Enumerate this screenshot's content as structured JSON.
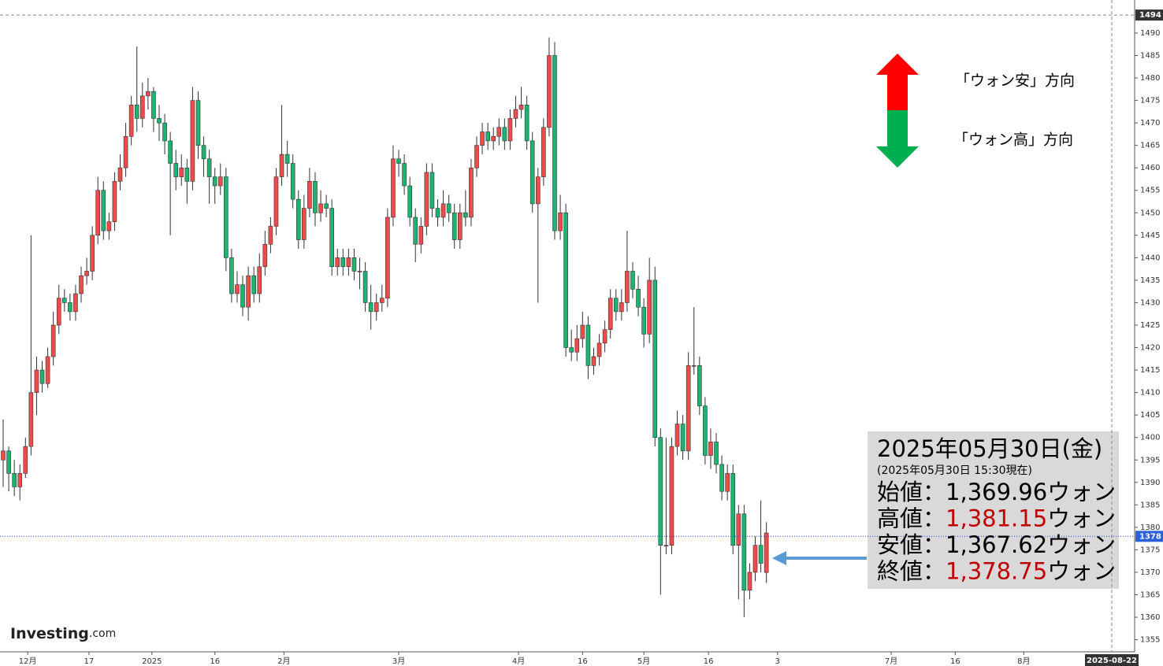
{
  "chart_data": {
    "type": "candlestick",
    "candles": [
      [
        1395,
        1404,
        1389,
        1397
      ],
      [
        1397,
        1398,
        1388,
        1392
      ],
      [
        1392,
        1395,
        1387,
        1389
      ],
      [
        1389,
        1394,
        1386,
        1392
      ],
      [
        1392,
        1400,
        1391,
        1398
      ],
      [
        1398,
        1445,
        1396,
        1410
      ],
      [
        1410,
        1418,
        1405,
        1415
      ],
      [
        1415,
        1417,
        1410,
        1412
      ],
      [
        1412,
        1420,
        1411,
        1418
      ],
      [
        1418,
        1428,
        1416,
        1425
      ],
      [
        1425,
        1434,
        1423,
        1431
      ],
      [
        1431,
        1433,
        1428,
        1430
      ],
      [
        1430,
        1432,
        1426,
        1428
      ],
      [
        1428,
        1434,
        1426,
        1432
      ],
      [
        1432,
        1438,
        1430,
        1436
      ],
      [
        1436,
        1440,
        1434,
        1437
      ],
      [
        1437,
        1447,
        1435,
        1445
      ],
      [
        1445,
        1458,
        1443,
        1455
      ],
      [
        1455,
        1457,
        1444,
        1446
      ],
      [
        1446,
        1450,
        1444,
        1448
      ],
      [
        1448,
        1459,
        1446,
        1457
      ],
      [
        1457,
        1463,
        1455,
        1460
      ],
      [
        1460,
        1470,
        1458,
        1467
      ],
      [
        1467,
        1476,
        1465,
        1474
      ],
      [
        1474,
        1487,
        1468,
        1471
      ],
      [
        1471,
        1479,
        1469,
        1476
      ],
      [
        1476,
        1480,
        1473,
        1477
      ],
      [
        1477,
        1478,
        1468,
        1471
      ],
      [
        1471,
        1474,
        1466,
        1470
      ],
      [
        1470,
        1472,
        1463,
        1466
      ],
      [
        1466,
        1468,
        1445,
        1461
      ],
      [
        1461,
        1464,
        1455,
        1458
      ],
      [
        1458,
        1463,
        1456,
        1460
      ],
      [
        1460,
        1462,
        1452,
        1457
      ],
      [
        1457,
        1478,
        1455,
        1475
      ],
      [
        1475,
        1477,
        1462,
        1465
      ],
      [
        1465,
        1467,
        1458,
        1462
      ],
      [
        1462,
        1464,
        1452,
        1458
      ],
      [
        1458,
        1460,
        1452,
        1456
      ],
      [
        1456,
        1461,
        1454,
        1458
      ],
      [
        1458,
        1460,
        1437,
        1440
      ],
      [
        1440,
        1442,
        1430,
        1432
      ],
      [
        1432,
        1437,
        1430,
        1434
      ],
      [
        1434,
        1436,
        1427,
        1429
      ],
      [
        1429,
        1438,
        1426,
        1436
      ],
      [
        1436,
        1438,
        1430,
        1432
      ],
      [
        1432,
        1441,
        1430,
        1438
      ],
      [
        1438,
        1446,
        1436,
        1443
      ],
      [
        1443,
        1449,
        1441,
        1447
      ],
      [
        1447,
        1460,
        1445,
        1458
      ],
      [
        1458,
        1474,
        1456,
        1463
      ],
      [
        1463,
        1466,
        1458,
        1461
      ],
      [
        1461,
        1463,
        1451,
        1453
      ],
      [
        1453,
        1455,
        1442,
        1444
      ],
      [
        1444,
        1454,
        1442,
        1451
      ],
      [
        1451,
        1460,
        1449,
        1457
      ],
      [
        1457,
        1459,
        1447,
        1450
      ],
      [
        1450,
        1455,
        1448,
        1452
      ],
      [
        1452,
        1454,
        1449,
        1451
      ],
      [
        1451,
        1453,
        1436,
        1438
      ],
      [
        1438,
        1442,
        1436,
        1440
      ],
      [
        1440,
        1442,
        1436,
        1438
      ],
      [
        1438,
        1442,
        1436,
        1440
      ],
      [
        1440,
        1442,
        1435,
        1437
      ],
      [
        1437,
        1440,
        1433,
        1437
      ],
      [
        1437,
        1439,
        1428,
        1430
      ],
      [
        1430,
        1434,
        1424,
        1428
      ],
      [
        1428,
        1432,
        1426,
        1430
      ],
      [
        1430,
        1434,
        1428,
        1431
      ],
      [
        1431,
        1451,
        1429,
        1449
      ],
      [
        1449,
        1465,
        1447,
        1462
      ],
      [
        1462,
        1464,
        1458,
        1461
      ],
      [
        1461,
        1463,
        1454,
        1456
      ],
      [
        1456,
        1458,
        1447,
        1449
      ],
      [
        1449,
        1451,
        1439,
        1443
      ],
      [
        1443,
        1449,
        1441,
        1447
      ],
      [
        1447,
        1461,
        1445,
        1459
      ],
      [
        1459,
        1461,
        1449,
        1451
      ],
      [
        1451,
        1453,
        1447,
        1449
      ],
      [
        1449,
        1455,
        1447,
        1452
      ],
      [
        1452,
        1454,
        1448,
        1450
      ],
      [
        1450,
        1452,
        1442,
        1444
      ],
      [
        1444,
        1452,
        1442,
        1450
      ],
      [
        1450,
        1455,
        1447,
        1449
      ],
      [
        1449,
        1462,
        1447,
        1460
      ],
      [
        1460,
        1467,
        1458,
        1465
      ],
      [
        1465,
        1470,
        1463,
        1468
      ],
      [
        1468,
        1470,
        1464,
        1466
      ],
      [
        1466,
        1469,
        1464,
        1467
      ],
      [
        1467,
        1471,
        1465,
        1469
      ],
      [
        1469,
        1471,
        1464,
        1466
      ],
      [
        1466,
        1473,
        1464,
        1471
      ],
      [
        1471,
        1476,
        1469,
        1473
      ],
      [
        1473,
        1478,
        1471,
        1474
      ],
      [
        1474,
        1476,
        1464,
        1466
      ],
      [
        1466,
        1468,
        1450,
        1452
      ],
      [
        1452,
        1460,
        1430,
        1458
      ],
      [
        1458,
        1471,
        1456,
        1469
      ],
      [
        1469,
        1489,
        1467,
        1485
      ],
      [
        1485,
        1488,
        1444,
        1446
      ],
      [
        1446,
        1454,
        1444,
        1450
      ],
      [
        1450,
        1452,
        1418,
        1420
      ],
      [
        1420,
        1424,
        1417,
        1419
      ],
      [
        1419,
        1425,
        1417,
        1422
      ],
      [
        1422,
        1428,
        1420,
        1425
      ],
      [
        1425,
        1427,
        1413,
        1416
      ],
      [
        1416,
        1420,
        1414,
        1418
      ],
      [
        1418,
        1423,
        1416,
        1421
      ],
      [
        1421,
        1426,
        1419,
        1424
      ],
      [
        1424,
        1433,
        1422,
        1431
      ],
      [
        1431,
        1433,
        1426,
        1428
      ],
      [
        1428,
        1433,
        1426,
        1430
      ],
      [
        1430,
        1446,
        1428,
        1437
      ],
      [
        1437,
        1439,
        1431,
        1433
      ],
      [
        1433,
        1436,
        1427,
        1429
      ],
      [
        1429,
        1431,
        1420,
        1423
      ],
      [
        1423,
        1440,
        1421,
        1435
      ],
      [
        1435,
        1438,
        1398,
        1400
      ],
      [
        1400,
        1402,
        1365,
        1376
      ],
      [
        1376,
        1400,
        1374,
        1376
      ],
      [
        1376,
        1400,
        1374,
        1398
      ],
      [
        1398,
        1406,
        1396,
        1403
      ],
      [
        1403,
        1405,
        1395,
        1397
      ],
      [
        1397,
        1419,
        1395,
        1416
      ],
      [
        1416,
        1429,
        1414,
        1416
      ],
      [
        1416,
        1418,
        1405,
        1407
      ],
      [
        1407,
        1409,
        1394,
        1396
      ],
      [
        1396,
        1402,
        1393,
        1399
      ],
      [
        1399,
        1401,
        1392,
        1394
      ],
      [
        1394,
        1396,
        1386,
        1388
      ],
      [
        1388,
        1394,
        1386,
        1392
      ],
      [
        1392,
        1394,
        1374,
        1376
      ],
      [
        1376,
        1385,
        1364,
        1383
      ],
      [
        1383,
        1385,
        1360,
        1366
      ],
      [
        1366,
        1372,
        1364,
        1370
      ],
      [
        1370,
        1378,
        1368,
        1376
      ],
      [
        1376,
        1386,
        1370,
        1372
      ],
      [
        1369.96,
        1381.15,
        1367.62,
        1378.75
      ]
    ],
    "up_color": "#ee4b4b",
    "down_color": "#1db370",
    "ylim": [
      1352.3,
      1497.35
    ],
    "yticks": [
      1355,
      1360,
      1365,
      1370,
      1375,
      1380,
      1385,
      1390,
      1395,
      1400,
      1405,
      1410,
      1415,
      1420,
      1425,
      1430,
      1435,
      1440,
      1445,
      1450,
      1455,
      1460,
      1465,
      1470,
      1475,
      1480,
      1485,
      1490
    ],
    "xlim": [
      -0.57,
      203.1
    ],
    "xticks": [
      {
        "value": 4.4,
        "label": "12月"
      },
      {
        "value": 15.4,
        "label": "17"
      },
      {
        "value": 26.7,
        "label": "2025"
      },
      {
        "value": 38,
        "label": "16"
      },
      {
        "value": 50.4,
        "label": "2月"
      },
      {
        "value": 71,
        "label": "3月"
      },
      {
        "value": 92.5,
        "label": "4月"
      },
      {
        "value": 104,
        "label": "16"
      },
      {
        "value": 115,
        "label": "5月"
      },
      {
        "value": 126.6,
        "label": "16"
      },
      {
        "value": 139,
        "label": "3"
      },
      {
        "value": 159.4,
        "label": "7月"
      },
      {
        "value": 170.9,
        "label": "16"
      },
      {
        "value": 183.2,
        "label": "8月"
      }
    ],
    "date_marker": {
      "value": 199,
      "label": "2025-08-22"
    },
    "top_marker": 1494,
    "last_price": 1378,
    "up_label": "「ウォン安」方向",
    "down_label": "「ウォン高」方向",
    "info_box": {
      "date": "2025年05月30日(金)",
      "asof": "(2025年05月30日 15:30現在)",
      "separator": "：",
      "unit": "ウォン",
      "rows": [
        {
          "label": "始値",
          "value": 1369.96,
          "value_label": "1,369.96",
          "color": "#000000"
        },
        {
          "label": "高値",
          "value": 1381.15,
          "value_label": "1,381.15",
          "color": "#c00000"
        },
        {
          "label": "安値",
          "value": 1367.62,
          "value_label": "1,367.62",
          "color": "#000000"
        },
        {
          "label": "終値",
          "value": 1378.75,
          "value_label": "1,378.75",
          "color": "#c00000"
        }
      ]
    },
    "watermark": "Investing",
    "watermark_suffix": ".com"
  }
}
